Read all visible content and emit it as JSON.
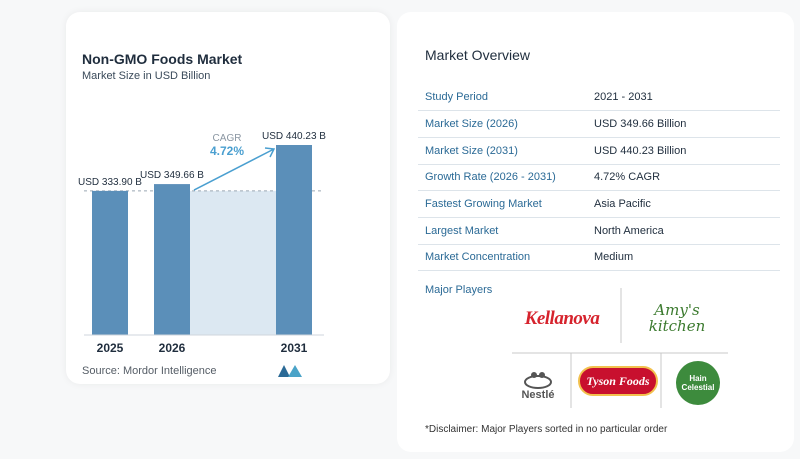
{
  "chart_title": "Non-GMO Foods Market",
  "chart_subtitle": "Market Size in USD Billion",
  "source": "Source: Mordor Intelligence",
  "cagr_label": "CAGR",
  "cagr_value": "4.72%",
  "chart_data": {
    "type": "bar",
    "title": "Non-GMO Foods Market",
    "subtitle": "Market Size in USD Billion",
    "categories": [
      "2025",
      "2026",
      "2031"
    ],
    "values": [
      333.9,
      349.66,
      440.23
    ],
    "data_labels": [
      "USD 333.90 B",
      "USD 349.66 B",
      "USD 440.23 B"
    ],
    "ylabel": "",
    "xlabel": "",
    "ylim": [
      0,
      440.23
    ],
    "grid": false,
    "colors": {
      "bar": "#5b8fb9",
      "band": "#dce8f2",
      "accent": "#4a9fd0"
    }
  },
  "overview": {
    "title": "Market Overview",
    "rows": [
      {
        "key": "Study Period",
        "value": "2021 - 2031"
      },
      {
        "key": "Market Size (2026)",
        "value": "USD 349.66 Billion"
      },
      {
        "key": "Market Size (2031)",
        "value": "USD 440.23 Billion"
      },
      {
        "key": "Growth Rate (2026 - 2031)",
        "value": "4.72% CAGR"
      },
      {
        "key": "Fastest Growing Market",
        "value": "Asia Pacific"
      },
      {
        "key": "Largest Market",
        "value": "North America"
      },
      {
        "key": "Market Concentration",
        "value": "Medium"
      }
    ]
  },
  "major_players": {
    "title": "Major Players",
    "logos": [
      "Kellanova",
      "Amy's kitchen",
      "Nestlé",
      "Tyson Foods",
      "Hain Celestial"
    ]
  },
  "disclaimer": "*Disclaimer: Major Players sorted in no particular order"
}
